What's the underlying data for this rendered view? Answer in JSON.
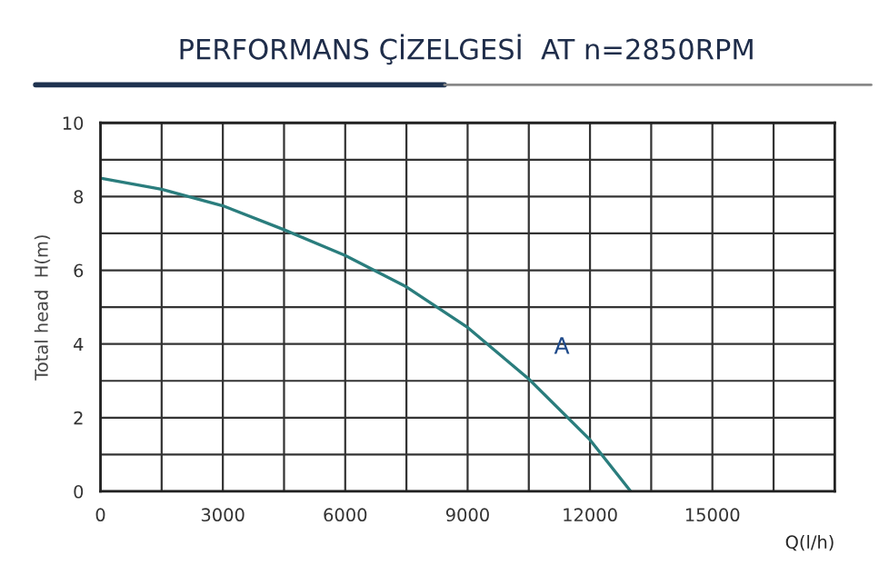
{
  "chart_data": {
    "type": "line",
    "title": "PERFORMANS ÇİZELGESİ  AT n=2850RPM",
    "xlabel": "Q(l/h)",
    "ylabel": "Total head  H(m)",
    "x": [
      0,
      1500,
      3000,
      4500,
      6000,
      7500,
      9000,
      10500,
      12000,
      13000
    ],
    "series": [
      {
        "name": "A",
        "color": "#2a7d7d",
        "values": [
          8.5,
          8.2,
          7.75,
          7.1,
          6.4,
          5.55,
          4.45,
          3.05,
          1.4,
          0
        ]
      }
    ],
    "xlim": [
      0,
      18000
    ],
    "ylim": [
      0,
      10
    ],
    "xticks": [
      0,
      {
        "value": 1500,
        "label": null
      },
      3000,
      {
        "value": 4500,
        "label": null
      },
      6000,
      {
        "value": 7500,
        "label": null
      },
      9000,
      {
        "value": 10500,
        "label": null
      },
      12000,
      {
        "value": 13500,
        "label": null
      },
      15000,
      {
        "value": 16500,
        "label": null
      },
      {
        "value": 18000,
        "label": null
      }
    ],
    "yticks": [
      0,
      {
        "value": 1,
        "label": null
      },
      2,
      {
        "value": 3,
        "label": null
      },
      4,
      {
        "value": 5,
        "label": null
      },
      6,
      {
        "value": 7,
        "label": null
      },
      8,
      {
        "value": 9,
        "label": null
      },
      10
    ],
    "grid": true,
    "legend": false,
    "marker": "none",
    "line_style": "solid"
  }
}
